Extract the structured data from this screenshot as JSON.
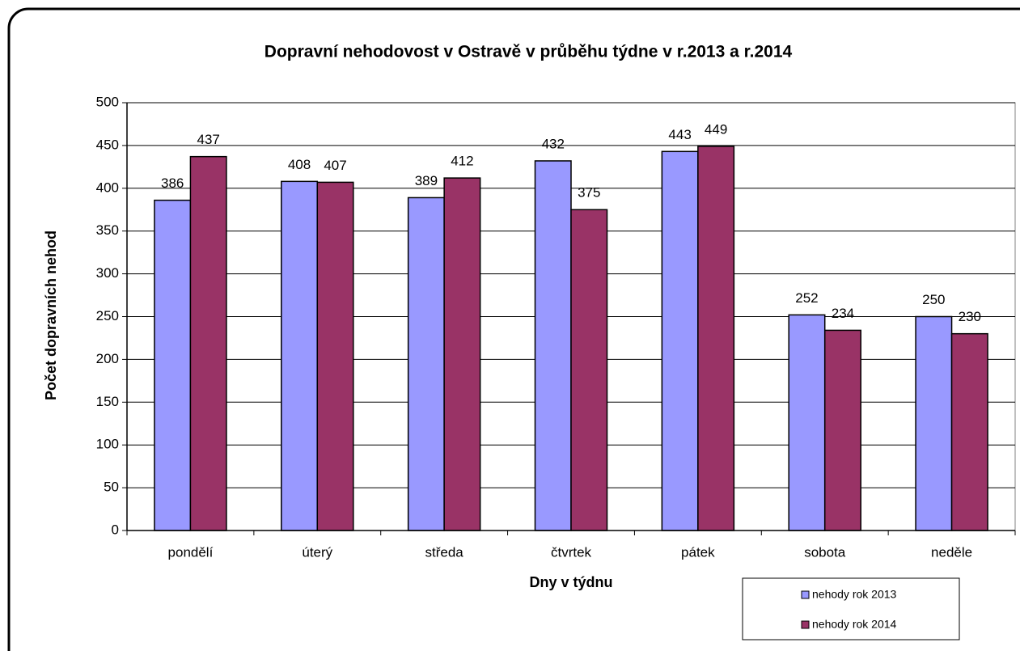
{
  "chart_data": {
    "type": "bar",
    "title": "Dopravní nehodovost v Ostravě v průběhu týdne v r.2013 a r.2014",
    "x_label": "Dny v týdnu",
    "y_label": "Počet dopravních nehod",
    "categories": [
      "pondělí",
      "úterý",
      "středa",
      "čtvrtek",
      "pátek",
      "sobota",
      "neděle"
    ],
    "series": [
      {
        "name": "nehody rok 2013",
        "color": "#9999ff",
        "values": [
          386,
          408,
          389,
          432,
          443,
          252,
          250
        ]
      },
      {
        "name": "nehody rok 2014",
        "color": "#993366",
        "values": [
          437,
          407,
          412,
          375,
          449,
          234,
          230
        ]
      }
    ],
    "ylim": [
      0,
      500
    ],
    "yticks": [
      0,
      50,
      100,
      150,
      200,
      250,
      300,
      350,
      400,
      450,
      500
    ],
    "grid": true,
    "legend": "bottom-right"
  }
}
